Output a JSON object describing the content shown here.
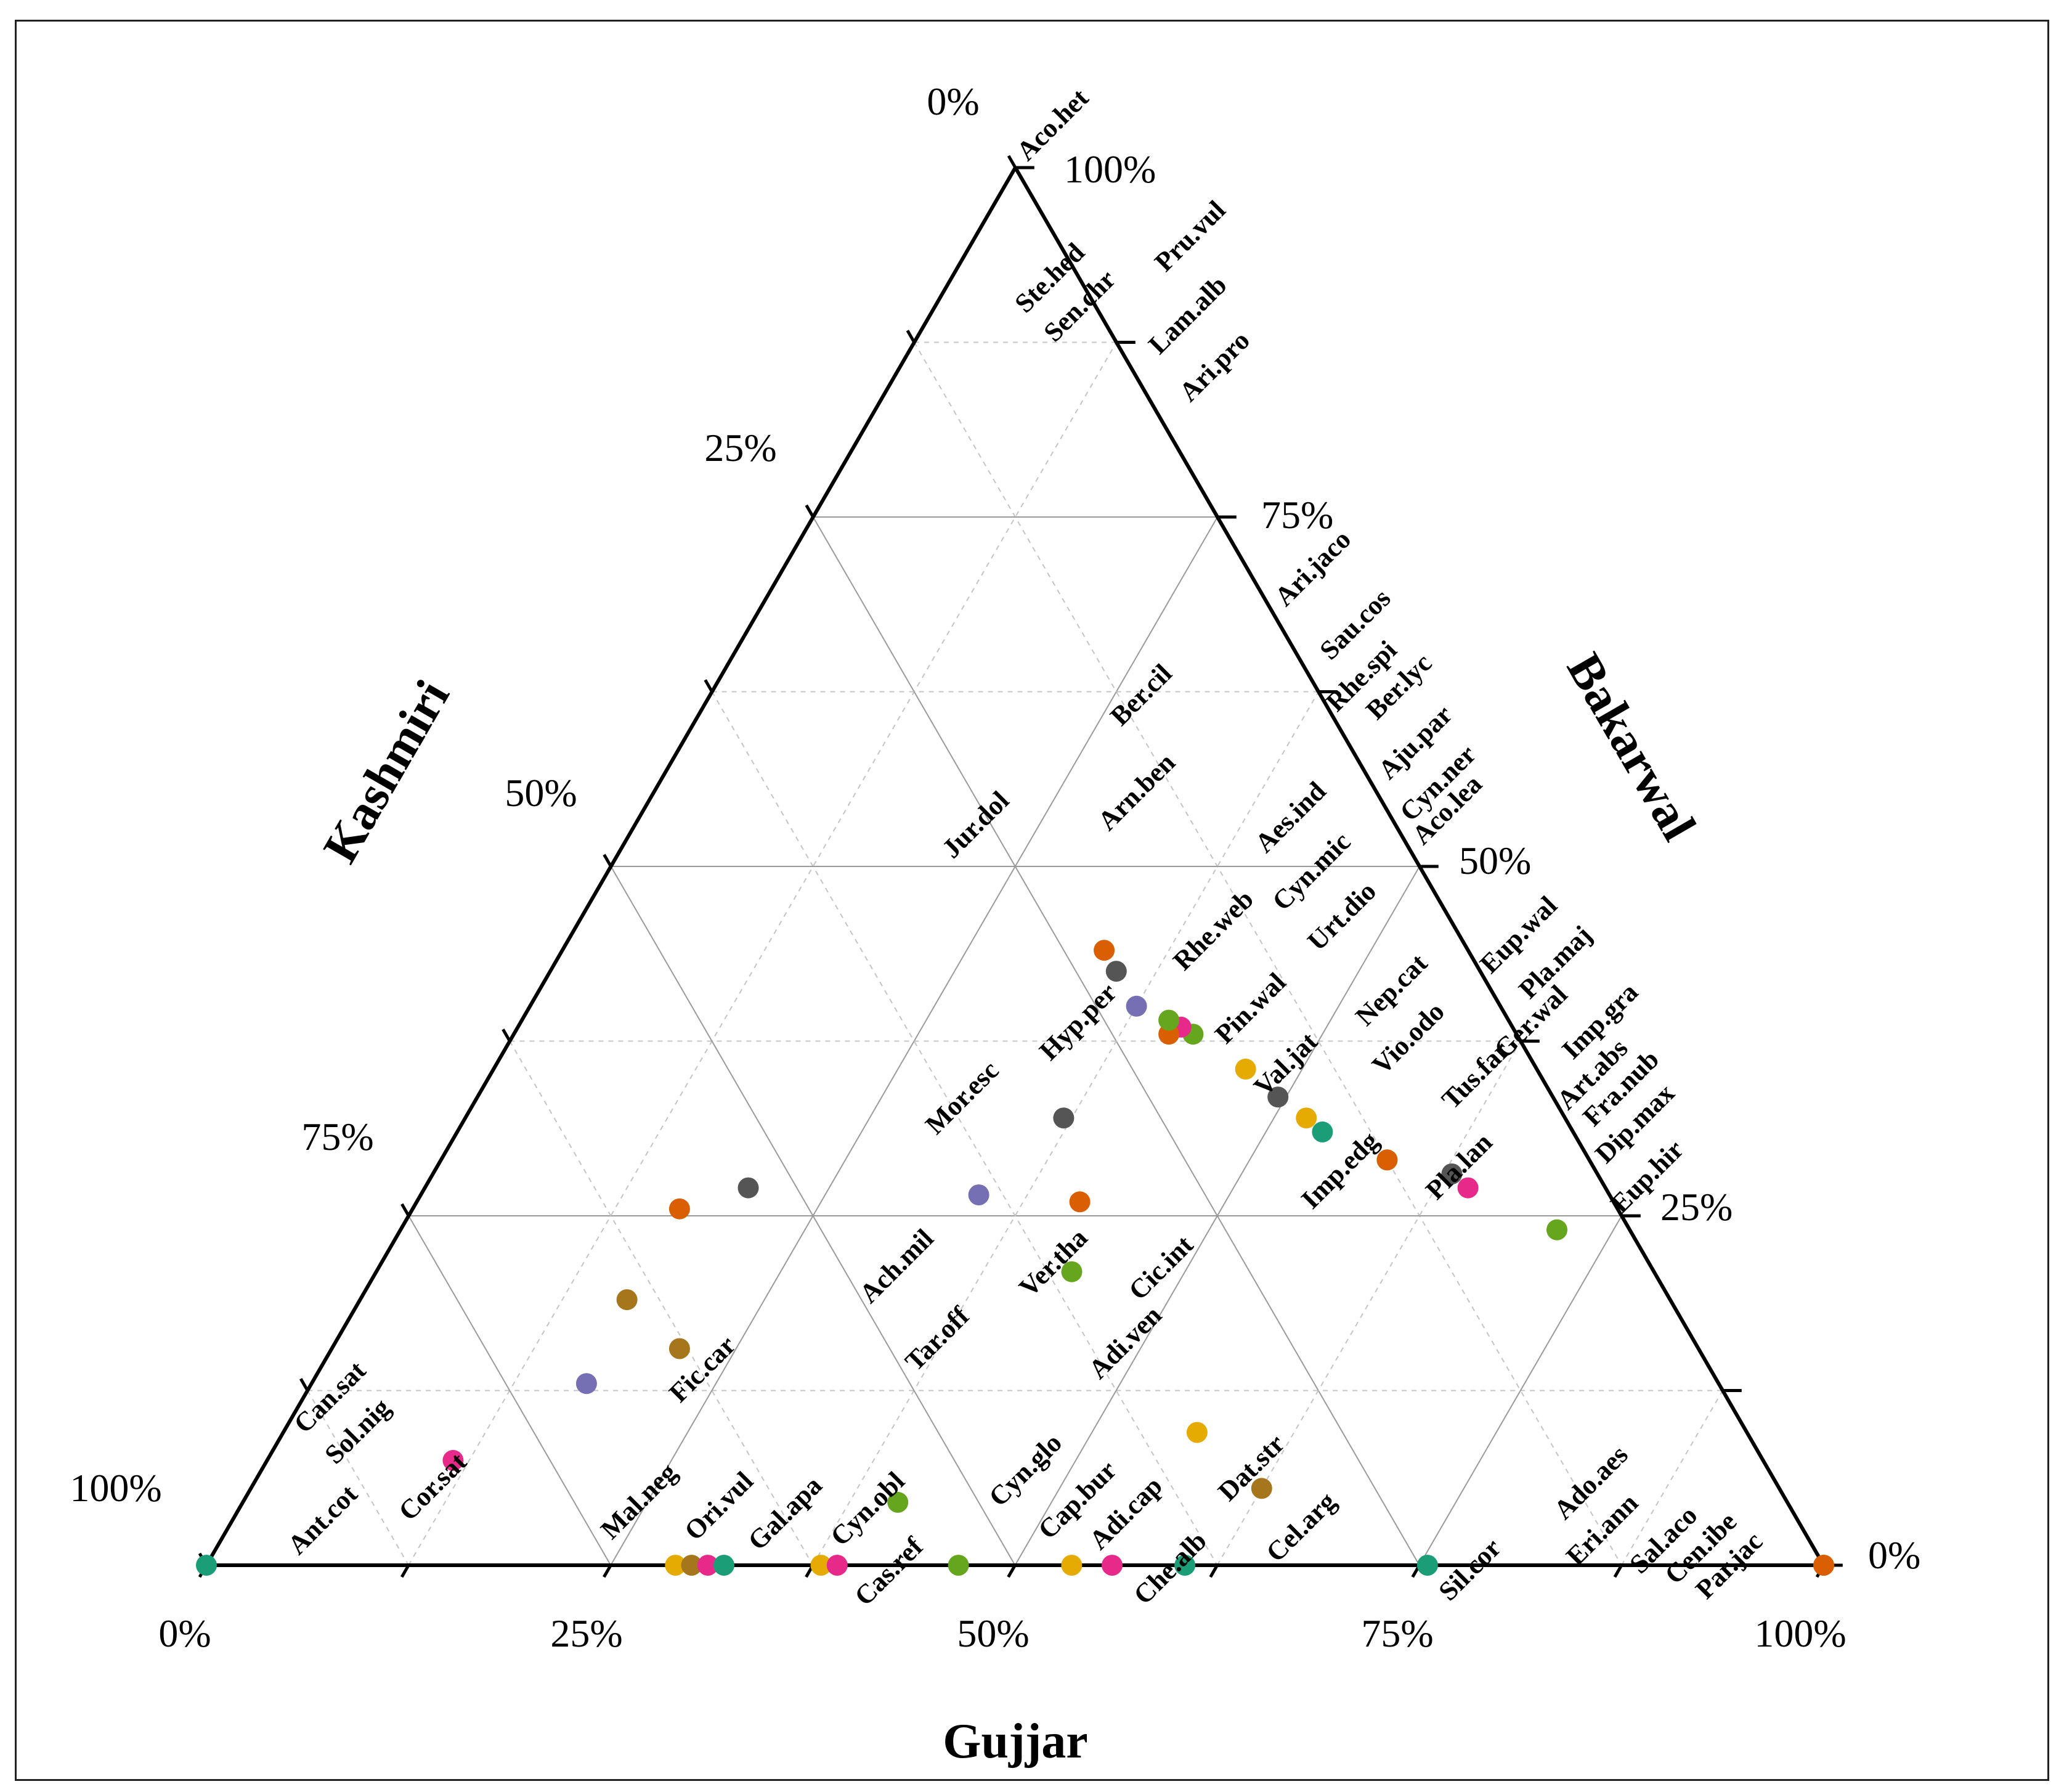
{
  "chart_data": {
    "type": "ternary-scatter",
    "axes": {
      "top": "Kashmiri",
      "left": "Gujjar",
      "right": "Bakarwal"
    },
    "axis_titles": {
      "kashmiri": "Kashmiri",
      "bakarwal": "Bakarwal",
      "gujjar": "Gujjar"
    },
    "tick_labels": {
      "bottom": [
        "0%",
        "25%",
        "50%",
        "75%",
        "100%"
      ],
      "left": [
        "100%",
        "75%",
        "50%",
        "25%",
        "0%"
      ],
      "right": [
        "100%",
        "75%",
        "50%",
        "25%",
        "0%"
      ]
    },
    "colors": {
      "brown": "#a6761d",
      "teal": "#1b9e77",
      "orange": "#d95f02",
      "purple": "#7570b3",
      "pink": "#e7298a",
      "green": "#66a61e",
      "gold": "#e6ab02",
      "gray": "#555555"
    },
    "points": [
      {
        "g": 0.0,
        "b": 1.0,
        "color": "brown"
      },
      {
        "g": 0.24,
        "b": 0.715,
        "color": "green"
      },
      {
        "g": 0.27,
        "b": 0.645,
        "color": "pink"
      },
      {
        "g": 0.28,
        "b": 0.63,
        "color": "gray"
      },
      {
        "g": 0.29,
        "b": 0.585,
        "color": "green"
      },
      {
        "g": 0.29,
        "b": 0.585,
        "color": "orange"
      },
      {
        "g": 0.31,
        "b": 0.535,
        "color": "teal"
      },
      {
        "g": 0.32,
        "b": 0.52,
        "color": "gold"
      },
      {
        "g": 0.335,
        "b": 0.495,
        "color": "gray"
      },
      {
        "g": 0.355,
        "b": 0.465,
        "color": "gold"
      },
      {
        "g": 0.38,
        "b": 0.42,
        "color": "green"
      },
      {
        "g": 0.385,
        "b": 0.41,
        "color": "pink"
      },
      {
        "g": 0.38,
        "b": 0.405,
        "color": "orange"
      },
      {
        "g": 0.39,
        "b": 0.4,
        "color": "green"
      },
      {
        "g": 0.4,
        "b": 0.375,
        "color": "purple"
      },
      {
        "g": 0.425,
        "b": 0.35,
        "color": "gray"
      },
      {
        "g": 0.44,
        "b": 0.335,
        "color": "orange"
      },
      {
        "g": 0.055,
        "b": 0.625,
        "color": "brown"
      },
      {
        "g": 0.095,
        "b": 0.565,
        "color": "gold"
      },
      {
        "g": 0.21,
        "b": 0.43,
        "color": "green"
      },
      {
        "g": 0.26,
        "b": 0.41,
        "color": "orange"
      },
      {
        "g": 0.045,
        "b": 0.405,
        "color": "green"
      },
      {
        "g": 0.32,
        "b": 0.37,
        "color": "gray"
      },
      {
        "g": 0.265,
        "b": 0.345,
        "color": "purple"
      },
      {
        "g": 0.27,
        "b": 0.2,
        "color": "gray"
      },
      {
        "g": 0.155,
        "b": 0.215,
        "color": "brown"
      },
      {
        "g": 0.19,
        "b": 0.165,
        "color": "brown"
      },
      {
        "g": 0.13,
        "b": 0.17,
        "color": "purple"
      },
      {
        "g": 0.255,
        "b": 0.165,
        "color": "orange"
      },
      {
        "g": 0.075,
        "b": 0.115,
        "color": "pink"
      },
      {
        "g": 0.0,
        "b": 0.0,
        "color": "teal"
      },
      {
        "g": 0.0,
        "b": 0.29,
        "color": "gold"
      },
      {
        "g": 0.0,
        "b": 0.3,
        "color": "brown"
      },
      {
        "g": 0.0,
        "b": 0.31,
        "color": "pink"
      },
      {
        "g": 0.0,
        "b": 0.32,
        "color": "teal"
      },
      {
        "g": 0.0,
        "b": 0.38,
        "color": "gold"
      },
      {
        "g": 0.0,
        "b": 0.39,
        "color": "pink"
      },
      {
        "g": 0.0,
        "b": 0.465,
        "color": "green"
      },
      {
        "g": 0.0,
        "b": 0.535,
        "color": "gold"
      },
      {
        "g": 0.0,
        "b": 0.56,
        "color": "pink"
      },
      {
        "g": 0.0,
        "b": 0.605,
        "color": "teal"
      },
      {
        "g": 0.0,
        "b": 0.755,
        "color": "teal"
      },
      {
        "g": 0.0,
        "b": 1.0,
        "color": "orange"
      }
    ],
    "labels": [
      {
        "text": "Aco.het",
        "pos": [
          1668,
          263
        ]
      },
      {
        "text": "Ste.hed",
        "pos": [
          1665,
          510
        ]
      },
      {
        "text": "Sen.chr",
        "pos": [
          1712,
          557
        ]
      },
      {
        "text": "Pru.vul",
        "pos": [
          1892,
          443
        ]
      },
      {
        "text": "Lam.alb",
        "pos": [
          1882,
          577
        ]
      },
      {
        "text": "Ari.pro",
        "pos": [
          1932,
          654
        ]
      },
      {
        "text": "Ari.jaco",
        "pos": [
          2087,
          986
        ]
      },
      {
        "text": "Sau.cos",
        "pos": [
          2160,
          1073
        ]
      },
      {
        "text": "Rhe.spi",
        "pos": [
          2170,
          1157
        ]
      },
      {
        "text": "Ber.lyc",
        "pos": [
          2235,
          1170
        ]
      },
      {
        "text": "Ber.cil",
        "pos": [
          1820,
          1180
        ]
      },
      {
        "text": "Aju.par",
        "pos": [
          2255,
          1267
        ]
      },
      {
        "text": "Arn.ben",
        "pos": [
          1800,
          1350
        ]
      },
      {
        "text": "Jur.dol",
        "pos": [
          1547,
          1395
        ]
      },
      {
        "text": "Aes.ind",
        "pos": [
          2055,
          1386
        ]
      },
      {
        "text": "Cyn.ner",
        "pos": [
          2290,
          1335
        ]
      },
      {
        "text": "Aco.lea",
        "pos": [
          2310,
          1373
        ]
      },
      {
        "text": "Cyn.mic",
        "pos": [
          2083,
          1480
        ]
      },
      {
        "text": "Urt.dio",
        "pos": [
          2140,
          1545
        ]
      },
      {
        "text": "Rhe.web",
        "pos": [
          1922,
          1577
        ]
      },
      {
        "text": "Eup.wal",
        "pos": [
          2420,
          1582
        ]
      },
      {
        "text": "Pla.maj",
        "pos": [
          2483,
          1623
        ]
      },
      {
        "text": "Nep.cat",
        "pos": [
          2218,
          1667
        ]
      },
      {
        "text": "Pin.wal",
        "pos": [
          1990,
          1696
        ]
      },
      {
        "text": "Imp.gra",
        "pos": [
          2553,
          1721
        ]
      },
      {
        "text": "Ger.wal",
        "pos": [
          2443,
          1720
        ]
      },
      {
        "text": "Hyp.per",
        "pos": [
          1705,
          1723
        ]
      },
      {
        "text": "Vio.odo",
        "pos": [
          2245,
          1746
        ]
      },
      {
        "text": "Art.abs",
        "pos": [
          2545,
          1803
        ]
      },
      {
        "text": "Fra.nub",
        "pos": [
          2587,
          1830
        ]
      },
      {
        "text": "Val.jat",
        "pos": [
          2053,
          1781
        ]
      },
      {
        "text": "Tus.far",
        "pos": [
          2358,
          1802
        ]
      },
      {
        "text": "Mor.esc",
        "pos": [
          1520,
          1843
        ]
      },
      {
        "text": "Dip.max",
        "pos": [
          2607,
          1890
        ]
      },
      {
        "text": "Imp.edg",
        "pos": [
          2130,
          1964
        ]
      },
      {
        "text": "Pla.lan",
        "pos": [
          2332,
          1949
        ]
      },
      {
        "text": "Eup.hir",
        "pos": [
          2632,
          1971
        ]
      },
      {
        "text": "Ach.mil",
        "pos": [
          1413,
          2117
        ]
      },
      {
        "text": "Ver.tha",
        "pos": [
          1672,
          2107
        ]
      },
      {
        "text": "Cic.int",
        "pos": [
          1850,
          2112
        ]
      },
      {
        "text": "Tar.off",
        "pos": [
          1487,
          2227
        ]
      },
      {
        "text": "Adi.ven",
        "pos": [
          1785,
          2240
        ]
      },
      {
        "text": "Fic.car",
        "pos": [
          1104,
          2278
        ]
      },
      {
        "text": "Can.sat",
        "pos": [
          495,
          2328
        ]
      },
      {
        "text": "Sol.nig",
        "pos": [
          545,
          2378
        ]
      },
      {
        "text": "Mal.neg",
        "pos": [
          993,
          2500
        ]
      },
      {
        "text": "Cor.sat",
        "pos": [
          665,
          2470
        ]
      },
      {
        "text": "Cyn.glo",
        "pos": [
          1623,
          2447
        ]
      },
      {
        "text": "Dat.str",
        "pos": [
          1995,
          2438
        ]
      },
      {
        "text": "Ado.aes",
        "pos": [
          2540,
          2468
        ]
      },
      {
        "text": "Ori.vul",
        "pos": [
          1129,
          2502
        ]
      },
      {
        "text": "Gal.apa",
        "pos": [
          1232,
          2518
        ]
      },
      {
        "text": "Cyn.obl",
        "pos": [
          1366,
          2511
        ]
      },
      {
        "text": "Cap.bur",
        "pos": [
          1703,
          2500
        ]
      },
      {
        "text": "Adi.cap",
        "pos": [
          1786,
          2517
        ]
      },
      {
        "text": "Eri.ann",
        "pos": [
          2560,
          2543
        ]
      },
      {
        "text": "Ant.cot",
        "pos": [
          485,
          2525
        ]
      },
      {
        "text": "Cel.arg",
        "pos": [
          2073,
          2537
        ]
      },
      {
        "text": "Sal.aco",
        "pos": [
          2663,
          2556
        ]
      },
      {
        "text": "Cen.ibe",
        "pos": [
          2720,
          2573
        ]
      },
      {
        "text": "Par.jac",
        "pos": [
          2770,
          2597
        ]
      },
      {
        "text": "Cas.ref",
        "pos": [
          1405,
          2608
        ]
      },
      {
        "text": "Che.alb",
        "pos": [
          1858,
          2606
        ]
      },
      {
        "text": "Sil.cor",
        "pos": [
          2353,
          2600
        ]
      }
    ]
  }
}
